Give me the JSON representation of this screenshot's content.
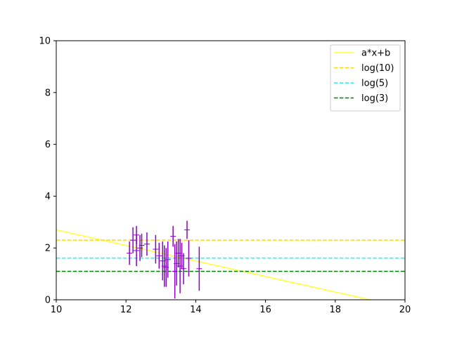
{
  "chart_data": {
    "type": "scatter",
    "title": "",
    "xlabel": "",
    "ylabel": "",
    "xlim": [
      10,
      20
    ],
    "ylim": [
      0,
      10
    ],
    "x_ticks": [
      "10",
      "12",
      "14",
      "16",
      "18",
      "20"
    ],
    "y_ticks": [
      "0",
      "2",
      "4",
      "6",
      "8",
      "10"
    ],
    "grid": false,
    "legend_position": "top-right",
    "lines": [
      {
        "name": "a*x+b",
        "kind": "linear",
        "x": [
          10,
          19
        ],
        "y": [
          2.7,
          0.0
        ],
        "color": "#ffff33",
        "style": "solid"
      },
      {
        "name": "log(10)",
        "kind": "hline",
        "y": 2.302585,
        "color": "#ffd700",
        "style": "dashed"
      },
      {
        "name": "log(5)",
        "kind": "hline",
        "y": 1.609438,
        "color": "#00ffff",
        "style": "dashed"
      },
      {
        "name": "log(3)",
        "kind": "hline",
        "y": 1.098612,
        "color": "#008000",
        "style": "dashed"
      }
    ],
    "errorbar_series": {
      "color": "#8a00d4",
      "points": [
        {
          "x": 12.1,
          "y": 1.8,
          "err": 0.45
        },
        {
          "x": 12.2,
          "y": 2.3,
          "err": 0.5
        },
        {
          "x": 12.3,
          "y": 1.9,
          "err": 0.6
        },
        {
          "x": 12.3,
          "y": 2.5,
          "err": 0.35
        },
        {
          "x": 12.4,
          "y": 2.0,
          "err": 0.5
        },
        {
          "x": 12.45,
          "y": 2.1,
          "err": 0.45
        },
        {
          "x": 12.6,
          "y": 2.15,
          "err": 0.45
        },
        {
          "x": 12.85,
          "y": 1.95,
          "err": 0.55
        },
        {
          "x": 12.95,
          "y": 1.7,
          "err": 0.5
        },
        {
          "x": 13.05,
          "y": 1.5,
          "err": 0.75
        },
        {
          "x": 13.1,
          "y": 1.3,
          "err": 0.8
        },
        {
          "x": 13.15,
          "y": 1.25,
          "err": 0.75
        },
        {
          "x": 13.2,
          "y": 1.55,
          "err": 0.7
        },
        {
          "x": 13.35,
          "y": 2.45,
          "err": 0.4
        },
        {
          "x": 13.4,
          "y": 1.1,
          "err": 1.05
        },
        {
          "x": 13.45,
          "y": 1.4,
          "err": 0.85
        },
        {
          "x": 13.5,
          "y": 1.8,
          "err": 0.55
        },
        {
          "x": 13.55,
          "y": 1.3,
          "err": 1.05
        },
        {
          "x": 13.6,
          "y": 1.7,
          "err": 0.5
        },
        {
          "x": 13.65,
          "y": 1.2,
          "err": 0.6
        },
        {
          "x": 13.75,
          "y": 2.7,
          "err": 0.35
        },
        {
          "x": 13.8,
          "y": 1.6,
          "err": 0.7
        },
        {
          "x": 14.1,
          "y": 1.2,
          "err": 0.85
        }
      ]
    }
  }
}
